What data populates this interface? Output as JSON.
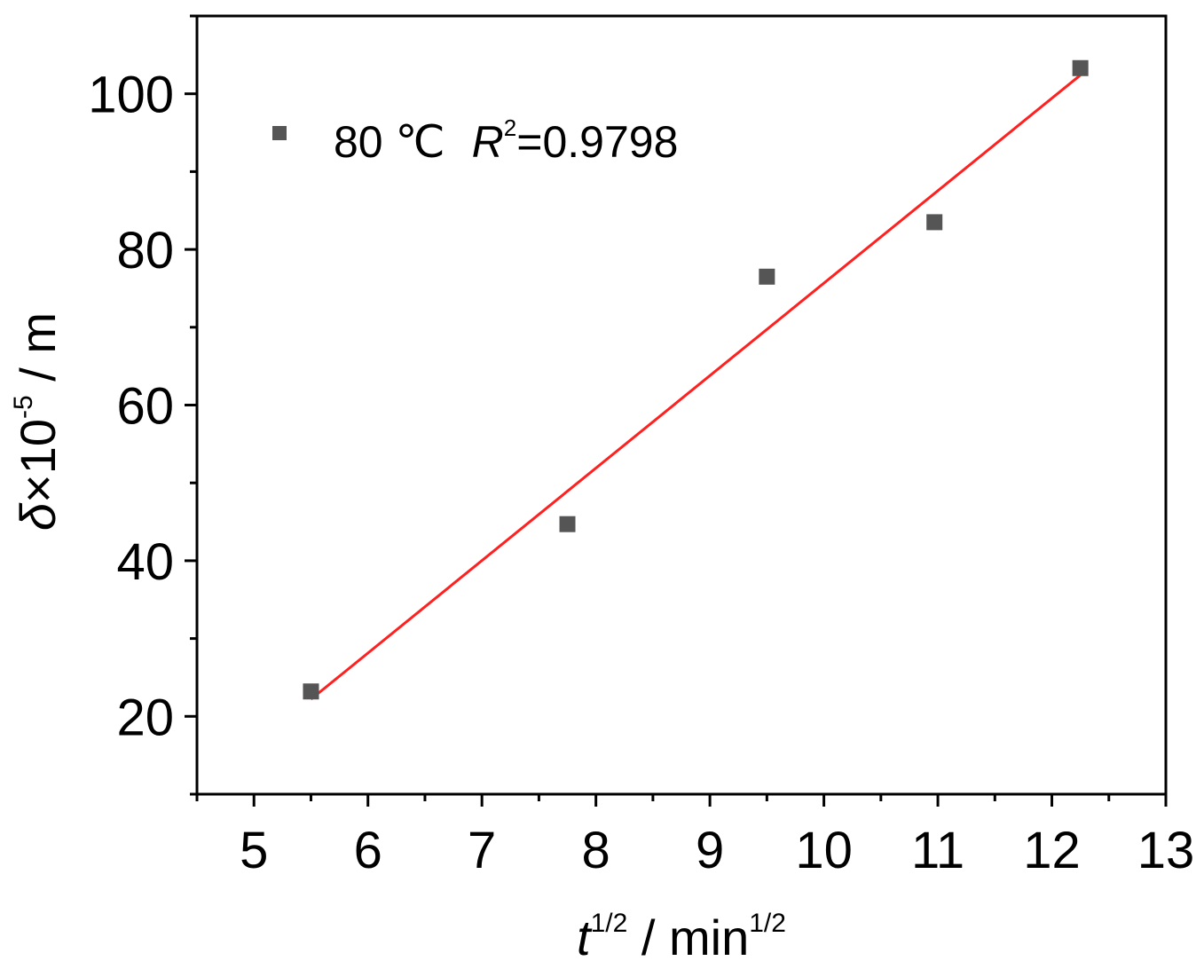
{
  "chart_data": {
    "type": "scatter",
    "x": [
      5.5,
      7.75,
      9.5,
      10.97,
      12.25
    ],
    "y": [
      23.2,
      44.7,
      76.5,
      83.5,
      103.3
    ],
    "xlim": [
      4.5,
      13
    ],
    "ylim": [
      10,
      110
    ],
    "xticks": [
      5,
      6,
      7,
      8,
      9,
      10,
      11,
      12,
      13
    ],
    "yticks": [
      20,
      40,
      60,
      80,
      100
    ],
    "xlabel": {
      "base": "t",
      "sup": "1/2",
      "mid": " / min",
      "sup2": "1/2"
    },
    "ylabel": {
      "base": "δ",
      "mid": "×10",
      "sup": "-5",
      "end": " / m"
    },
    "fit": {
      "x": [
        5.5,
        12.25
      ],
      "y": [
        22.2,
        102.4
      ],
      "color": "#ff2020"
    },
    "legend": {
      "placement": "top-left",
      "label": "80 ℃",
      "r_symbol": "R",
      "r_sup": "2",
      "r_value": "=0.9798"
    },
    "marker_color": "#555555",
    "grid": false
  }
}
